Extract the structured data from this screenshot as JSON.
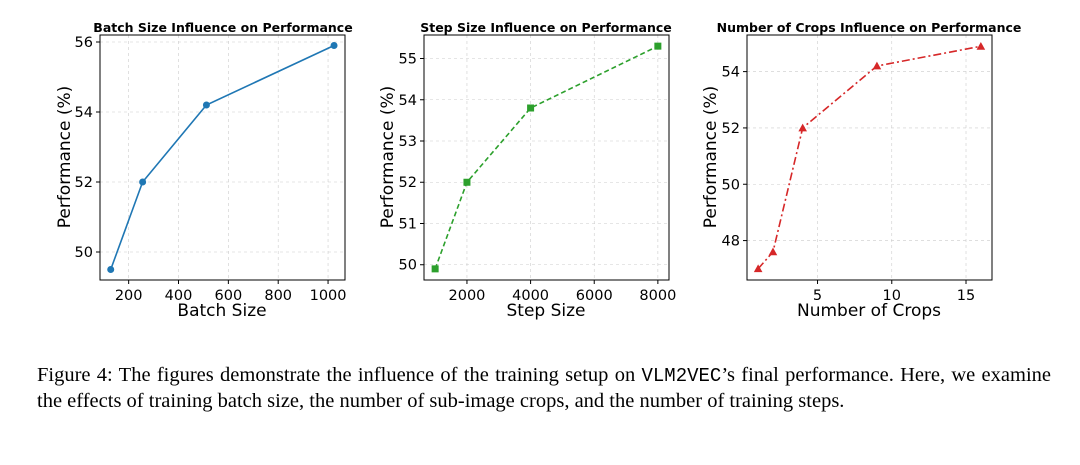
{
  "chart_data": [
    {
      "type": "line",
      "title": "Batch Size Influence on Performance",
      "xlabel": "Batch Size",
      "ylabel": "Performance (%)",
      "x": [
        128,
        256,
        512,
        1024
      ],
      "y": [
        49.5,
        52.0,
        54.2,
        55.9
      ],
      "xlim": [
        85,
        1068
      ],
      "ylim": [
        49.2,
        56.2
      ],
      "xticks": [
        200,
        400,
        600,
        800,
        1000
      ],
      "yticks": [
        50,
        52,
        54,
        56
      ],
      "color": "#1f77b4",
      "linestyle": "solid",
      "marker": "circle",
      "grid": true
    },
    {
      "type": "line",
      "title": "Step Size Influence on Performance",
      "xlabel": "Step Size",
      "ylabel": "Performance (%)",
      "x": [
        1000,
        2000,
        4000,
        8000
      ],
      "y": [
        49.9,
        52.0,
        53.8,
        55.3
      ],
      "xlim": [
        650,
        8350
      ],
      "ylim": [
        49.63,
        55.57
      ],
      "xticks": [
        2000,
        4000,
        6000,
        8000
      ],
      "yticks": [
        50,
        51,
        52,
        53,
        54,
        55
      ],
      "color": "#2ca02c",
      "linestyle": "dashed",
      "marker": "square",
      "grid": true
    },
    {
      "type": "line",
      "title": "Number of Crops Influence on Performance",
      "xlabel": "Number of Crops",
      "ylabel": "Performance (%)",
      "x": [
        1,
        2,
        4,
        9,
        16
      ],
      "y": [
        47.0,
        47.6,
        52.0,
        54.2,
        54.9
      ],
      "xlim": [
        0.25,
        16.75
      ],
      "ylim": [
        46.6,
        55.3
      ],
      "xticks": [
        5,
        10,
        15
      ],
      "yticks": [
        48,
        50,
        52,
        54
      ],
      "color": "#d62728",
      "linestyle": "dashdot",
      "marker": "triangle",
      "grid": true
    }
  ],
  "caption": {
    "prefix": "Figure 4: The figures demonstrate the influence of the training setup on ",
    "model": "VLM2VEC",
    "suffix": "’s final performance. Here, we examine the effects of training batch size, the number of sub-image crops, and the number of training steps."
  }
}
